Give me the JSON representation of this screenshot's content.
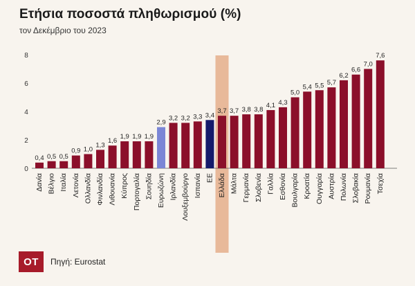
{
  "title": "Ετήσια ποσοστά πληθωρισμού (%)",
  "subtitle": "τον Δεκέμβριο του 2023",
  "logo_text": "ΟΤ",
  "source": "Πηγή: Eurostat",
  "colors": {
    "default": "#8b0f2a",
    "eurozone": "#7b86d6",
    "eu": "#151a6b",
    "greece_highlight": "#e8b99a"
  },
  "chart_data": {
    "type": "bar",
    "title": "Ετήσια ποσοστά πληθωρισμού (%)",
    "subtitle": "τον Δεκέμβριο του 2023",
    "xlabel": "",
    "ylabel": "",
    "ylim": [
      0,
      8
    ],
    "yticks": [
      0,
      2,
      4,
      6,
      8
    ],
    "grid": false,
    "value_labels": [
      "0,4",
      "0,5",
      "0,5",
      "0,9",
      "1,0",
      "1,3",
      "1,6",
      "1,9",
      "1,9",
      "1,9",
      "2,9",
      "3,2",
      "3,2",
      "3,3",
      "3,4",
      "3,7",
      "3,7",
      "3,8",
      "3,8",
      "4,1",
      "4,3",
      "5,0",
      "5,4",
      "5,5",
      "5,7",
      "6,2",
      "6,6",
      "7,0",
      "7,6"
    ],
    "categories": [
      "Δανία",
      "Βέλγιο",
      "Ιταλία",
      "Λετονία",
      "Ολλανδία",
      "Φινλανδία",
      "Λιθουανία",
      "Κύπρος",
      "Πορτογαλία",
      "Σουηδία",
      "Ευρωζώνη",
      "Ιρλανδία",
      "Λουξεμβούργο",
      "Ισπανία",
      "ΕΕ",
      "Ελλάδα",
      "Μάλτα",
      "Γερμανία",
      "Σλοβενία",
      "Γαλλία",
      "Εσθονία",
      "Βουλγαρία",
      "Κροατία",
      "Ουγγαρία",
      "Αυστρία",
      "Πολωνία",
      "Σλοβακία",
      "Ρουμανία",
      "Τσεχία"
    ],
    "values": [
      0.4,
      0.5,
      0.5,
      0.9,
      1.0,
      1.3,
      1.6,
      1.9,
      1.9,
      1.9,
      2.9,
      3.2,
      3.2,
      3.3,
      3.4,
      3.7,
      3.7,
      3.8,
      3.8,
      4.1,
      4.3,
      5.0,
      5.4,
      5.5,
      5.7,
      6.2,
      6.6,
      7.0,
      7.6
    ],
    "bar_colors": [
      "default",
      "default",
      "default",
      "default",
      "default",
      "default",
      "default",
      "default",
      "default",
      "default",
      "eurozone",
      "default",
      "default",
      "default",
      "eu",
      "default",
      "default",
      "default",
      "default",
      "default",
      "default",
      "default",
      "default",
      "default",
      "default",
      "default",
      "default",
      "default",
      "default"
    ],
    "highlighted_category": "Ελλάδα"
  }
}
